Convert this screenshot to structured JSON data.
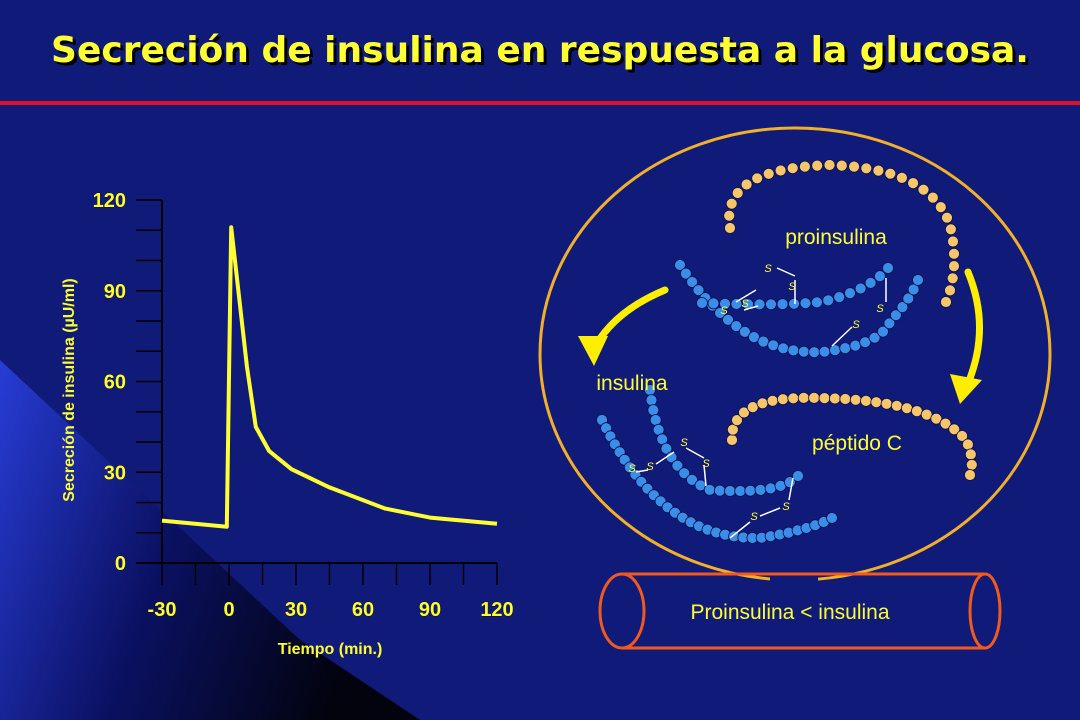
{
  "slide": {
    "title": "Secreción de insulina en respuesta a la glucosa.",
    "colors": {
      "background": "#101a78",
      "title": "#ffff33",
      "rule": "#e0102a",
      "curve": "#ffff33"
    }
  },
  "chart_data": {
    "type": "line",
    "xlabel": "Tiempo (min.)",
    "ylabel": "Secreción de insulina (µU/ml)",
    "xlim": [
      -30,
      120
    ],
    "ylim": [
      0,
      120
    ],
    "x_ticks": [
      -30,
      0,
      30,
      60,
      90,
      120
    ],
    "y_ticks": [
      0,
      30,
      60,
      90,
      120
    ],
    "grid": false,
    "series": [
      {
        "name": "",
        "x": [
          -30,
          -1,
          1,
          8,
          12,
          18,
          28,
          45,
          70,
          90,
          120
        ],
        "y": [
          14,
          12,
          111,
          65,
          45,
          37,
          31,
          25,
          18,
          15,
          13
        ]
      }
    ]
  },
  "diagram": {
    "labels": {
      "proinsulina": "proinsulina",
      "insulina": "insulina",
      "peptido_c": "péptido C",
      "vessel": "Proinsulina < insulina",
      "disulfide": "S"
    },
    "colors": {
      "a_chain": "#3a8ee8",
      "c_peptide": "#f7c56a",
      "ring": "#f2b02a",
      "vessel": "#f05a1e",
      "arrow": "#ffee00"
    }
  }
}
